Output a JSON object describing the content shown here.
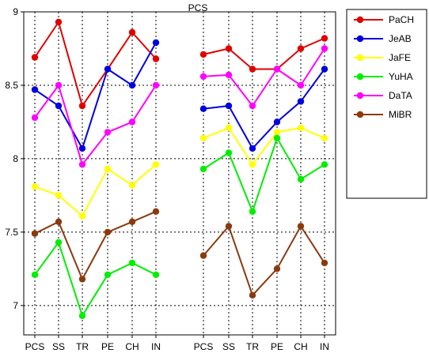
{
  "chart_data": {
    "type": "line",
    "title": "PCS",
    "xlabel": "",
    "ylabel": "",
    "ylim": [
      6.8,
      9.0
    ],
    "yticks": [
      7,
      7.5,
      8,
      8.5,
      9
    ],
    "ytick_labels": [
      "7",
      "7.5",
      "8",
      "8.5",
      "9"
    ],
    "grid": true,
    "legend_position": "right",
    "panels": [
      {
        "categories": [
          "PCS",
          "SS",
          "TR",
          "PE",
          "CH",
          "IN"
        ]
      },
      {
        "categories": [
          "PCS",
          "SS",
          "TR",
          "PE",
          "CH",
          "IN"
        ]
      }
    ],
    "series": [
      {
        "name": "PaCH",
        "color": "#e00000",
        "values": [
          [
            8.69,
            8.93,
            8.36,
            8.61,
            8.86,
            8.68
          ],
          [
            8.71,
            8.75,
            8.61,
            8.61,
            8.75,
            8.82
          ]
        ]
      },
      {
        "name": "JeAB",
        "color": "#0000e0",
        "values": [
          [
            8.47,
            8.36,
            8.07,
            8.61,
            8.5,
            8.79
          ],
          [
            8.34,
            8.36,
            8.07,
            8.25,
            8.39,
            8.61
          ]
        ]
      },
      {
        "name": "JaFE",
        "color": "#ffff00",
        "values": [
          [
            7.81,
            7.75,
            7.61,
            7.93,
            7.82,
            7.96
          ],
          [
            8.14,
            8.21,
            7.96,
            8.18,
            8.21,
            8.14
          ]
        ]
      },
      {
        "name": "YuHA",
        "color": "#00ee00",
        "values": [
          [
            7.21,
            7.43,
            6.93,
            7.21,
            7.29,
            7.21
          ],
          [
            7.93,
            8.04,
            7.64,
            8.14,
            7.86,
            7.96
          ]
        ]
      },
      {
        "name": "DaTA",
        "color": "#ff00ff",
        "values": [
          [
            8.28,
            8.5,
            7.96,
            8.18,
            8.25,
            8.5
          ],
          [
            8.56,
            8.57,
            8.36,
            8.61,
            8.5,
            8.75
          ]
        ]
      },
      {
        "name": "MiBR",
        "color": "#8b3a0e",
        "values": [
          [
            7.49,
            7.57,
            7.18,
            7.5,
            7.57,
            7.64
          ],
          [
            7.34,
            7.54,
            7.07,
            7.25,
            7.54,
            7.29
          ]
        ]
      }
    ]
  }
}
